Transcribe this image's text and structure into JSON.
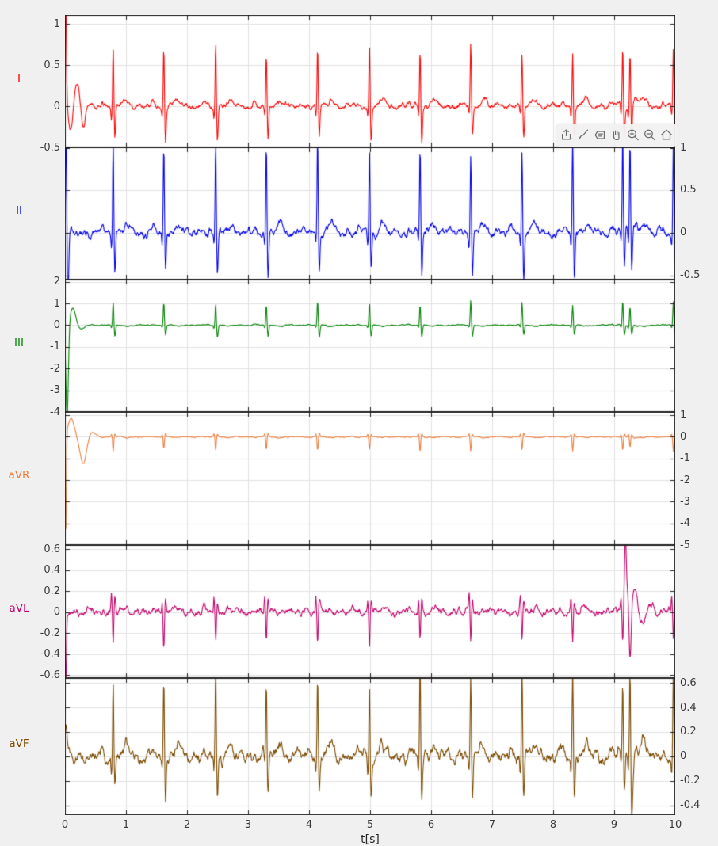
{
  "figure": {
    "background": "#f0f0f0",
    "plot_background": "#ffffff",
    "grid_color": "#e2e2e2",
    "axis_color": "#1f1f1f",
    "tick_label_color": "#3c3c3c"
  },
  "toolbar": {
    "tools": [
      {
        "name": "export",
        "icon": "export-icon"
      },
      {
        "name": "brush",
        "icon": "brush-icon"
      },
      {
        "name": "datatips",
        "icon": "datatip-icon"
      },
      {
        "name": "pan",
        "icon": "pan-hand-icon"
      },
      {
        "name": "zoom-in",
        "icon": "zoom-in-icon"
      },
      {
        "name": "zoom-out",
        "icon": "zoom-out-icon"
      },
      {
        "name": "restore-view",
        "icon": "home-icon"
      }
    ]
  },
  "chart_data": {
    "type": "line",
    "title": "",
    "xlabel": "t[s]",
    "x_range": [
      0,
      10
    ],
    "x_ticks": [
      0,
      1,
      2,
      3,
      4,
      5,
      6,
      7,
      8,
      9,
      10
    ],
    "x_tick_labels": [
      "0",
      "1",
      "2",
      "3",
      "4",
      "5",
      "6",
      "7",
      "8",
      "9",
      "10"
    ],
    "grid": true,
    "sample_step": 0.008,
    "beat_times": [
      0.79,
      1.62,
      2.47,
      3.3,
      4.14,
      4.99,
      5.82,
      6.65,
      7.49,
      8.32,
      9.14,
      9.97
    ],
    "subplots": [
      {
        "label": "I",
        "color": "#ff0000",
        "axis_side": "left",
        "seed": 11,
        "ylim": [
          -0.5,
          1.11
        ],
        "ytick_values": [
          1,
          0.5,
          0,
          -0.5
        ],
        "ytick_labels": [
          "1",
          "0.5",
          "0",
          "-0.5"
        ],
        "beat": {
          "p": 0.04,
          "q": -0.12,
          "r": 0.72,
          "s": -0.4,
          "t": 0.08
        },
        "noise_amp": 0.032,
        "transient": [
          [
            0.006,
            1.6,
            0.015
          ],
          [
            0.09,
            -0.32,
            0.03
          ],
          [
            0.2,
            0.3,
            0.04
          ],
          [
            0.3,
            -0.28,
            0.03
          ]
        ],
        "extra_beat": {
          "time": 9.26,
          "scale": 0.95
        }
      },
      {
        "label": "II",
        "color": "#0000ee",
        "axis_side": "right",
        "seed": 22,
        "ylim": [
          -0.55,
          1.0
        ],
        "ytick_values": [
          1,
          0.5,
          0,
          -0.5
        ],
        "ytick_labels": [
          "1",
          "0.5",
          "0",
          "-0.5"
        ],
        "beat": {
          "p": 0.05,
          "q": -0.15,
          "r": 1.08,
          "s": -0.5,
          "t": 0.1
        },
        "noise_amp": 0.05,
        "transient": [
          [
            0.02,
            1.4,
            0.008
          ],
          [
            0.05,
            -0.75,
            0.012
          ]
        ],
        "extra_beat": {
          "time": 9.26,
          "scale": 1.0
        }
      },
      {
        "label": "III",
        "color": "#008000",
        "axis_side": "left",
        "seed": 33,
        "ylim": [
          -4,
          2.1
        ],
        "ytick_values": [
          2,
          1,
          0,
          -1,
          -2,
          -3,
          -4
        ],
        "ytick_labels": [
          "2",
          "1",
          "0",
          "-1",
          "-2",
          "-3",
          "-4"
        ],
        "beat": {
          "p": 0.03,
          "q": -0.12,
          "r": 1.05,
          "s": -0.5,
          "t": -0.05
        },
        "noise_amp": 0.025,
        "transient": [
          [
            0.035,
            -4.3,
            0.02
          ],
          [
            0.13,
            0.8,
            0.045
          ],
          [
            0.26,
            -0.2,
            0.05
          ]
        ],
        "extra_beat": {
          "time": 9.26,
          "scale": 0.85
        }
      },
      {
        "label": "aVR",
        "color": "#ed7d3d",
        "axis_side": "right",
        "seed": 44,
        "ylim": [
          -5,
          1.15
        ],
        "ytick_values": [
          1,
          0,
          -1,
          -2,
          -3,
          -4,
          -5
        ],
        "ytick_labels": [
          "1",
          "0",
          "-1",
          "-2",
          "-3",
          "-4",
          "-5"
        ],
        "beat": {
          "p": -0.02,
          "q": 0.13,
          "r": -0.62,
          "s": 0.15,
          "t": -0.04
        },
        "noise_amp": 0.022,
        "transient": [
          [
            0.012,
            -4.8,
            0.01
          ],
          [
            0.1,
            0.85,
            0.05
          ],
          [
            0.3,
            -1.25,
            0.05
          ],
          [
            0.45,
            0.22,
            0.05
          ]
        ],
        "extra_beat": {
          "time": 9.26,
          "scale": 0.8
        }
      },
      {
        "label": "aVL",
        "color": "#c40069",
        "axis_side": "left",
        "seed": 55,
        "ylim": [
          -0.63,
          0.64
        ],
        "ytick_values": [
          0.6,
          0.4,
          0.2,
          0,
          -0.2,
          -0.4,
          -0.6
        ],
        "ytick_labels": [
          "0.6",
          "0.4",
          "0.2",
          "0",
          "-0.2",
          "-0.4",
          "-0.6"
        ],
        "beat": {
          "p": 0.02,
          "q": 0.14,
          "r": -0.3,
          "s": 0.12,
          "t": 0.03
        },
        "noise_amp": 0.035,
        "transient": [
          [
            0.015,
            -0.68,
            0.01
          ]
        ],
        "anomaly": [
          [
            9.185,
            0.55,
            0.012
          ],
          [
            9.215,
            0.28,
            0.03
          ],
          [
            9.26,
            -0.6,
            0.018
          ],
          [
            9.33,
            0.22,
            0.04
          ],
          [
            9.45,
            -0.12,
            0.05
          ],
          [
            9.6,
            0.07,
            0.05
          ]
        ]
      },
      {
        "label": "aVF",
        "color": "#7a4a00",
        "axis_side": "right",
        "seed": 66,
        "ylim": [
          -0.48,
          0.64
        ],
        "ytick_values": [
          0.6,
          0.4,
          0.2,
          0,
          -0.2,
          -0.4
        ],
        "ytick_labels": [
          "0.6",
          "0.4",
          "0.2",
          "0",
          "-0.2",
          "-0.4"
        ],
        "beat": {
          "p": 0.05,
          "q": -0.12,
          "r": 0.68,
          "s": -0.33,
          "t": 0.09
        },
        "noise_amp": 0.05,
        "transient": [
          [
            0.02,
            0.25,
            0.015
          ]
        ],
        "extra_beat": {
          "time": 9.26,
          "scale": 1.05
        },
        "anomaly": [
          [
            9.3,
            -0.22,
            0.02
          ]
        ]
      }
    ]
  }
}
